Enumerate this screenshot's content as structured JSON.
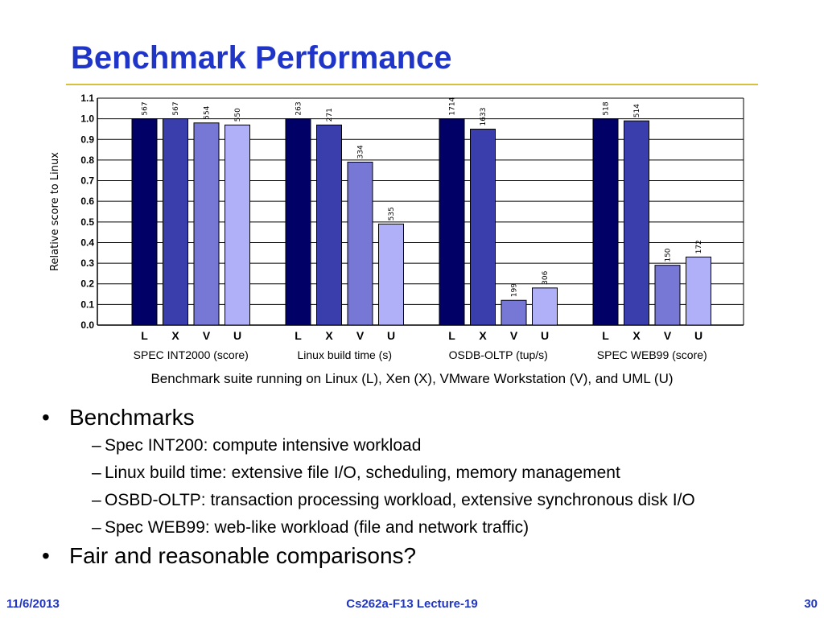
{
  "slide": {
    "title": "Benchmark Performance",
    "caption": "Benchmark suite running on Linux (L), Xen (X), VMware Workstation (V), and UML (U)",
    "bullets": [
      {
        "text": "Benchmarks",
        "sub": [
          "Spec INT200: compute intensive workload",
          "Linux build time: extensive file I/O, scheduling, memory management",
          "OSBD-OLTP: transaction processing workload, extensive synchronous disk I/O",
          "Spec WEB99: web-like workload (file and network traffic)"
        ]
      },
      {
        "text": "Fair and reasonable comparisons?",
        "sub": []
      }
    ],
    "bullet_symbol": "•",
    "dash_symbol": "–"
  },
  "footer": {
    "date": "11/6/2013",
    "course": "Cs262a-F13 Lecture-19",
    "page": "30"
  },
  "colors": {
    "title": "#1f35c8",
    "rule": "#d9bf3a",
    "L": "#000066",
    "X": "#3a3eac",
    "V": "#7777d6",
    "U": "#b0b0f8"
  },
  "chart_data": {
    "type": "bar",
    "ylabel": "Relative score to Linux",
    "ylim": [
      0,
      1.1
    ],
    "yticks": [
      "0.0",
      "0.1",
      "0.2",
      "0.3",
      "0.4",
      "0.5",
      "0.6",
      "0.7",
      "0.8",
      "0.9",
      "1.0",
      "1.1"
    ],
    "grid": true,
    "series_labels": [
      "L",
      "X",
      "V",
      "U"
    ],
    "groups": [
      {
        "name": "SPEC INT2000 (score)",
        "values": [
          1.0,
          1.0,
          0.98,
          0.97
        ],
        "labels": [
          "567",
          "567",
          "554",
          "550"
        ]
      },
      {
        "name": "Linux build time (s)",
        "values": [
          1.0,
          0.97,
          0.79,
          0.49
        ],
        "labels": [
          "263",
          "271",
          "334",
          "535"
        ]
      },
      {
        "name": "OSDB-OLTP (tup/s)",
        "values": [
          1.0,
          0.95,
          0.12,
          0.18
        ],
        "labels": [
          "1714",
          "1633",
          "199",
          "306"
        ]
      },
      {
        "name": "SPEC WEB99 (score)",
        "values": [
          1.0,
          0.99,
          0.29,
          0.33
        ],
        "labels": [
          "518",
          "514",
          "150",
          "172"
        ]
      }
    ]
  }
}
